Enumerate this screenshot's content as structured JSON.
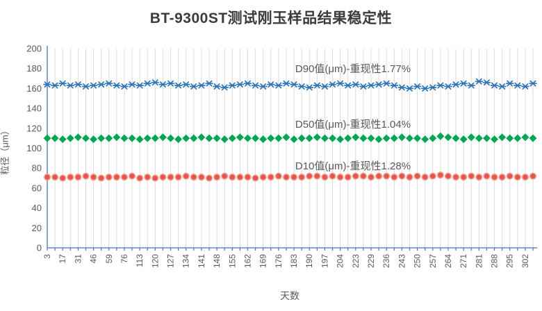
{
  "chart_data": {
    "type": "scatter",
    "title": "BT-9300ST测试刚玉样品结果稳定性",
    "xlabel": "天数",
    "ylabel": "粒径（μm）",
    "ylim": [
      0,
      200
    ],
    "ytick_step": 20,
    "grid": "vertical-only",
    "legend_position": "inline-above-series",
    "points_per_series": 64,
    "x_tick_labels": [
      "3",
      "17",
      "31",
      "46",
      "59",
      "76",
      "113",
      "120",
      "127",
      "134",
      "141",
      "148",
      "155",
      "162",
      "169",
      "176",
      "183",
      "190",
      "197",
      "204",
      "223",
      "229",
      "236",
      "243",
      "250",
      "257",
      "264",
      "271",
      "281",
      "288",
      "295",
      "302"
    ],
    "axis_color": "#4472C4",
    "grid_color": "#DBDBDB",
    "text_color": "#595959",
    "series": [
      {
        "name": "D90值(μm)-重现性1.77%",
        "marker": "asterisk",
        "color": "#2E75B6",
        "values": [
          164,
          163,
          165,
          163,
          164,
          162,
          163,
          164,
          165,
          163,
          162,
          164,
          163,
          165,
          166,
          164,
          165,
          163,
          164,
          162,
          163,
          165,
          162,
          161,
          163,
          164,
          165,
          163,
          162,
          164,
          163,
          165,
          164,
          162,
          161,
          163,
          162,
          164,
          165,
          163,
          164,
          162,
          163,
          164,
          165,
          163,
          161,
          160,
          162,
          160,
          161,
          163,
          162,
          164,
          165,
          163,
          167,
          166,
          163,
          162,
          165,
          163,
          162,
          165
        ]
      },
      {
        "name": "D50值(μm)-重现性1.04%",
        "marker": "diamond",
        "color": "#00A651",
        "values": [
          110,
          110,
          109,
          110,
          111,
          110,
          109,
          110,
          110,
          111,
          110,
          110,
          109,
          110,
          110,
          111,
          110,
          109,
          110,
          110,
          111,
          110,
          110,
          109,
          110,
          111,
          110,
          110,
          109,
          110,
          110,
          111,
          109,
          110,
          110,
          111,
          110,
          110,
          109,
          110,
          111,
          110,
          110,
          109,
          110,
          110,
          111,
          110,
          110,
          109,
          110,
          112,
          111,
          110,
          109,
          111,
          110,
          110,
          109,
          111,
          110,
          110,
          111,
          110
        ]
      },
      {
        "name": "D10值(μm)-重现性1.28%",
        "marker": "circle",
        "color": "#E4564A",
        "marker_stroke": "#F2A091",
        "values": [
          71,
          71,
          70,
          71,
          71,
          72,
          71,
          70,
          71,
          71,
          71,
          72,
          70,
          71,
          70,
          71,
          71,
          71,
          72,
          71,
          71,
          70,
          71,
          72,
          71,
          71,
          71,
          70,
          71,
          71,
          72,
          71,
          71,
          71,
          72,
          72,
          71,
          72,
          71,
          71,
          72,
          72,
          71,
          72,
          72,
          71,
          72,
          71,
          72,
          71,
          72,
          73,
          72,
          71,
          71,
          72,
          71,
          72,
          71,
          71,
          72,
          71,
          71,
          72
        ]
      }
    ]
  }
}
